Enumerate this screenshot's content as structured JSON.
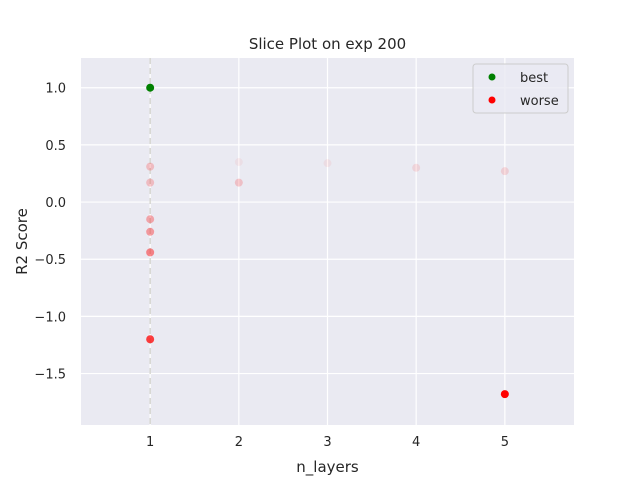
{
  "chart_data": {
    "type": "scatter",
    "title": "Slice Plot on exp 200",
    "xlabel": "n_layers",
    "ylabel": "R2 Score",
    "xlim": [
      0.22,
      5.78
    ],
    "ylim": [
      -1.95,
      1.26
    ],
    "xticks": [
      1,
      2,
      3,
      4,
      5
    ],
    "xtick_labels": [
      "1",
      "2",
      "3",
      "4",
      "5"
    ],
    "yticks": [
      -1.5,
      -1.0,
      -0.5,
      0.0,
      0.5,
      1.0
    ],
    "ytick_labels": [
      "−1.5",
      "−1.0",
      "−0.5",
      "0.0",
      "0.5",
      "1.0"
    ],
    "grid": true,
    "background": "#eaeaf2",
    "highlight_x": 1,
    "legend": {
      "placement": "top-right",
      "entries": [
        {
          "label": "best",
          "color": "#008000"
        },
        {
          "label": "worse",
          "color": "#ff0000"
        }
      ]
    },
    "series": [
      {
        "name": "best",
        "color": "#008000",
        "points": [
          {
            "x": 1,
            "y": 1.0,
            "alpha": 1.0
          }
        ]
      },
      {
        "name": "worse",
        "color": "#ff0000",
        "points": [
          {
            "x": 1,
            "y": 0.31,
            "alpha": 0.2
          },
          {
            "x": 1,
            "y": 0.17,
            "alpha": 0.2
          },
          {
            "x": 1,
            "y": -0.15,
            "alpha": 0.3
          },
          {
            "x": 1,
            "y": -0.26,
            "alpha": 0.35
          },
          {
            "x": 1,
            "y": -0.44,
            "alpha": 0.45
          },
          {
            "x": 1,
            "y": -1.2,
            "alpha": 0.75
          },
          {
            "x": 2,
            "y": 0.17,
            "alpha": 0.18
          },
          {
            "x": 2,
            "y": 0.35,
            "alpha": 0.05
          },
          {
            "x": 3,
            "y": 0.34,
            "alpha": 0.06
          },
          {
            "x": 4,
            "y": 0.3,
            "alpha": 0.1
          },
          {
            "x": 5,
            "y": 0.27,
            "alpha": 0.12
          },
          {
            "x": 5,
            "y": -1.68,
            "alpha": 1.0
          }
        ]
      }
    ]
  }
}
